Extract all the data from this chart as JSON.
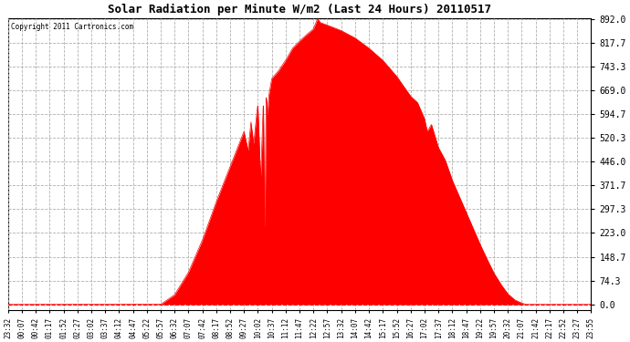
{
  "title": "Solar Radiation per Minute W/m2 (Last 24 Hours) 20110517",
  "copyright": "Copyright 2011 Cartronics.com",
  "bg_color": "#ffffff",
  "plot_bg_color": "#ffffff",
  "fill_color": "#ff0000",
  "line_color": "#ff0000",
  "grid_color": "#b0b0b0",
  "border_color": "#000000",
  "yticks": [
    0.0,
    74.3,
    148.7,
    223.0,
    297.3,
    371.7,
    446.0,
    520.3,
    594.7,
    669.0,
    743.3,
    817.7,
    892.0
  ],
  "ymax": 892.0,
  "ymin": 0.0,
  "xtick_labels": [
    "23:32",
    "00:07",
    "00:42",
    "01:17",
    "01:52",
    "02:27",
    "03:02",
    "03:37",
    "04:12",
    "04:47",
    "05:22",
    "05:57",
    "06:32",
    "07:07",
    "07:42",
    "08:17",
    "08:52",
    "09:27",
    "10:02",
    "10:37",
    "11:12",
    "11:47",
    "12:22",
    "12:57",
    "13:32",
    "14:07",
    "14:42",
    "15:17",
    "15:52",
    "16:27",
    "17:02",
    "17:37",
    "18:12",
    "18:47",
    "19:22",
    "19:57",
    "20:32",
    "21:07",
    "21:42",
    "22:17",
    "22:52",
    "23:27",
    "23:55"
  ],
  "n_labels": 43,
  "figsize": [
    6.9,
    3.75
  ],
  "dpi": 100
}
